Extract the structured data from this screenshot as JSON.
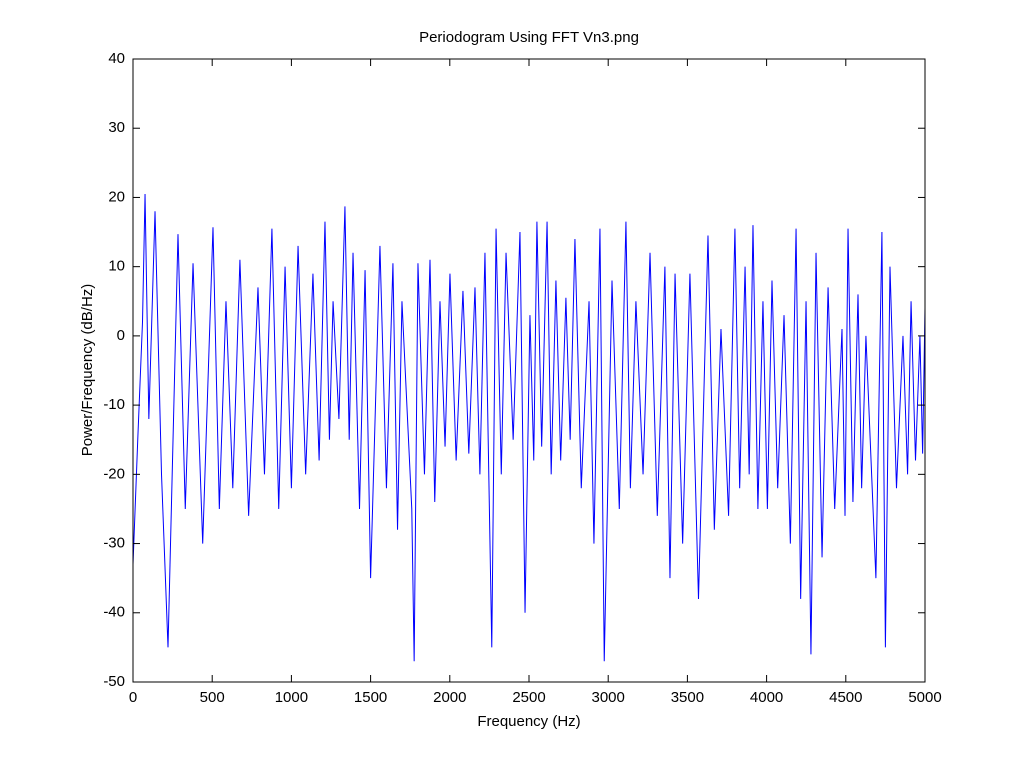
{
  "chart_data": {
    "type": "line",
    "title": "Periodogram Using FFT Vn3.png",
    "x_label": "Frequency (Hz)",
    "y_label": "Power/Frequency (dB/Hz)",
    "color": "#0000ff",
    "xlim": [
      0,
      5000
    ],
    "xticks": [
      0,
      500,
      1000,
      1500,
      2000,
      2500,
      3000,
      3500,
      4000,
      4500,
      5000
    ],
    "ylim": [
      -50,
      40
    ],
    "yticks": [
      -50,
      -40,
      -30,
      -20,
      -10,
      0,
      10,
      20,
      30,
      40
    ],
    "grid": false,
    "x": [
      0,
      30,
      60,
      76,
      100,
      139,
      180,
      221,
      284,
      330,
      379,
      440,
      505,
      545,
      587,
      630,
      675,
      730,
      789,
      830,
      877,
      920,
      960,
      1000,
      1042,
      1090,
      1136,
      1175,
      1212,
      1240,
      1263,
      1300,
      1338,
      1365,
      1389,
      1430,
      1465,
      1500,
      1559,
      1600,
      1641,
      1670,
      1698,
      1760,
      1775,
      1799,
      1840,
      1875,
      1905,
      1938,
      1970,
      2001,
      2040,
      2083,
      2120,
      2159,
      2190,
      2222,
      2265,
      2292,
      2325,
      2355,
      2400,
      2443,
      2475,
      2506,
      2530,
      2550,
      2580,
      2614,
      2640,
      2670,
      2700,
      2733,
      2760,
      2790,
      2830,
      2879,
      2910,
      2948,
      2975,
      3024,
      3070,
      3112,
      3140,
      3175,
      3220,
      3264,
      3310,
      3358,
      3390,
      3422,
      3470,
      3516,
      3570,
      3630,
      3670,
      3712,
      3760,
      3800,
      3830,
      3864,
      3890,
      3914,
      3945,
      3977,
      4005,
      4034,
      4070,
      4110,
      4150,
      4186,
      4215,
      4249,
      4280,
      4312,
      4350,
      4388,
      4430,
      4476,
      4495,
      4514,
      4545,
      4577,
      4600,
      4627,
      4690,
      4728,
      4750,
      4779,
      4820,
      4861,
      4890,
      4912,
      4940,
      4968,
      4985,
      5000
    ],
    "values": [
      -33,
      -15,
      2,
      20.5,
      -12,
      18,
      -20,
      -45,
      14.7,
      -25,
      10.5,
      -30,
      15.7,
      -25,
      5,
      -22,
      11,
      -26,
      7,
      -20,
      15.5,
      -25,
      10,
      -22,
      13,
      -20,
      9,
      -18,
      16.5,
      -15,
      5,
      -12,
      18.7,
      -15,
      12,
      -25,
      9.5,
      -35,
      13,
      -22,
      10.5,
      -28,
      5,
      -25,
      -47,
      10.5,
      -20,
      11,
      -24,
      5,
      -16,
      9,
      -18,
      6.5,
      -17,
      7,
      -20,
      12,
      -45,
      15.5,
      -20,
      12,
      -15,
      15,
      -40,
      3,
      -18,
      16.5,
      -16,
      16.5,
      -20,
      8,
      -18,
      5.5,
      -15,
      14,
      -22,
      5,
      -30,
      15.5,
      -47,
      8,
      -25,
      16.5,
      -22,
      5,
      -20,
      12,
      -26,
      10,
      -35,
      9,
      -30,
      9,
      -38,
      14.5,
      -28,
      1,
      -26,
      15.5,
      -22,
      10,
      -20,
      16,
      -25,
      5,
      -25,
      8,
      -22,
      3,
      -30,
      15.5,
      -38,
      5,
      -46,
      12,
      -32,
      7,
      -25,
      1,
      -26,
      15.5,
      -24,
      6,
      -22,
      0,
      -35,
      15,
      -45,
      10,
      -22,
      0,
      -20,
      5,
      -18,
      0,
      -17,
      4
    ]
  }
}
